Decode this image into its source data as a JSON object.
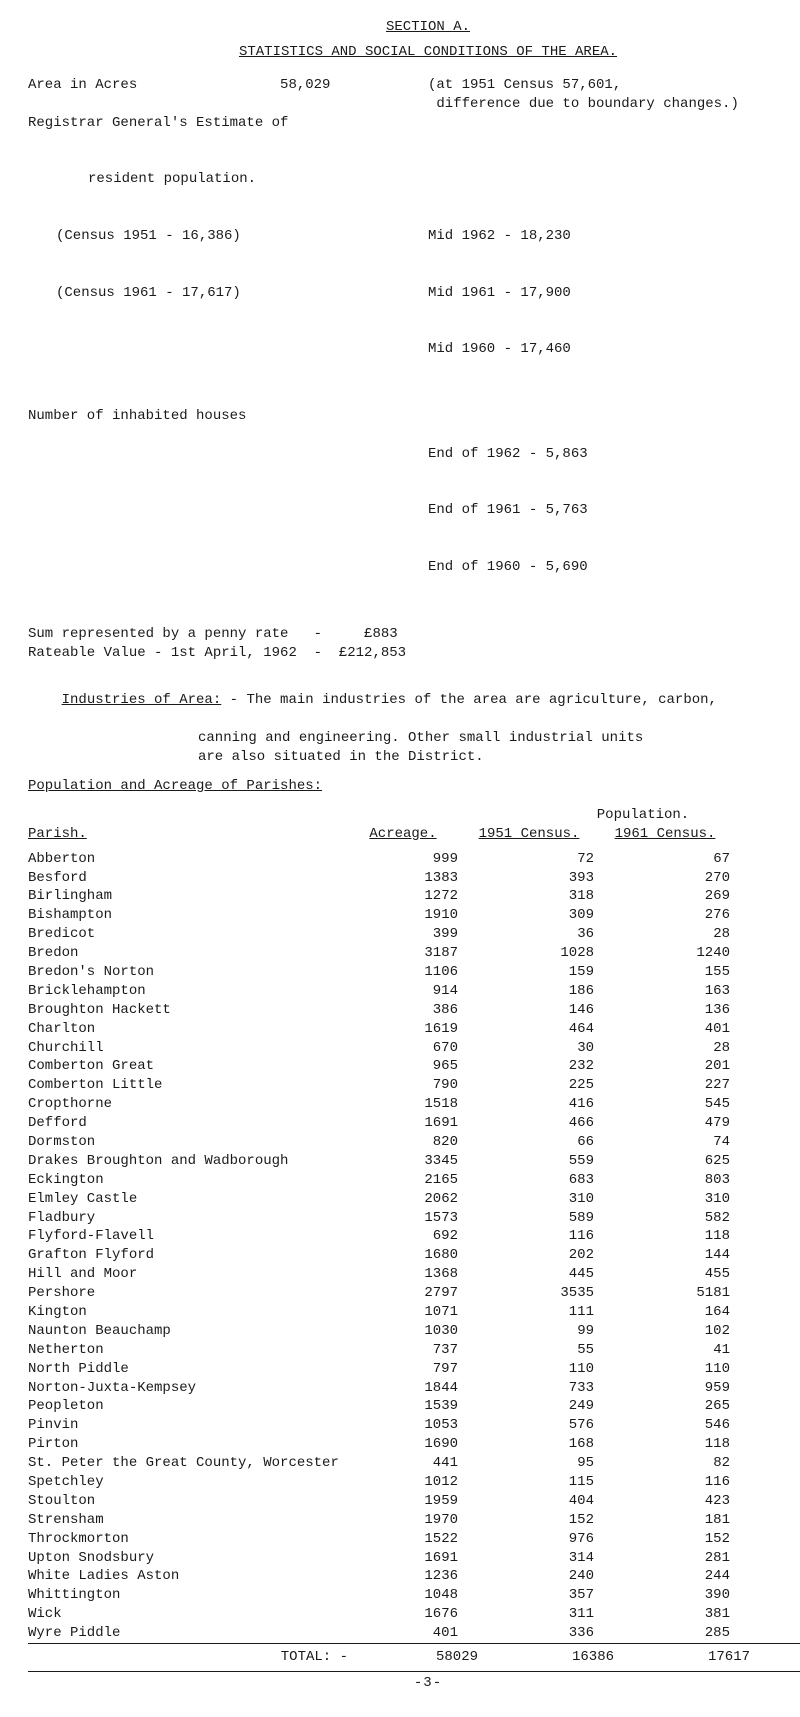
{
  "section_label": "SECTION A.",
  "title": "STATISTICS AND SOCIAL CONDITIONS OF THE AREA.",
  "area_line_left": "Area in Acres                 58,029",
  "area_line_right_a": "(at 1951 Census 57,601,",
  "area_line_right_b": " difference due to boundary changes.)",
  "registrar_a": "Registrar General's Estimate of",
  "registrar_b": "resident population.",
  "census_1951": "(Census 1951 - 16,386)",
  "census_1961": "(Census 1961 - 17,617)",
  "mid_1962": "Mid 1962 - 18,230",
  "mid_1961": "Mid 1961 - 17,900",
  "mid_1960": "Mid 1960 - 17,460",
  "houses_label": "Number of inhabited houses",
  "end_1962": "End of 1962 - 5,863",
  "end_1961": "End of 1961 - 5,763",
  "end_1960": "End of 1960 - 5,690",
  "penny_rate": "Sum represented by a penny rate   -     £883",
  "rateable_value": "Rateable Value - 1st April, 1962  -  £212,853",
  "industries_label": "Industries of Area:",
  "industries_a": " - The main industries of the area are agriculture, carbon,",
  "industries_b": "canning and engineering.   Other small industrial units",
  "industries_c": "are also situated in the District.",
  "pop_heading": "Population and Acreage of Parishes:",
  "population_label": "Population.",
  "col_parish": "Parish.",
  "col_acreage": "Acreage.",
  "col_c51": "1951 Census.",
  "col_c61": "1961 Census.",
  "parishes": [
    {
      "name": "Abberton",
      "acre": "999",
      "c51": "72",
      "c61": "67"
    },
    {
      "name": "Besford",
      "acre": "1383",
      "c51": "393",
      "c61": "270"
    },
    {
      "name": "Birlingham",
      "acre": "1272",
      "c51": "318",
      "c61": "269"
    },
    {
      "name": "Bishampton",
      "acre": "1910",
      "c51": "309",
      "c61": "276"
    },
    {
      "name": "Bredicot",
      "acre": "399",
      "c51": "36",
      "c61": "28"
    },
    {
      "name": "Bredon",
      "acre": "3187",
      "c51": "1028",
      "c61": "1240"
    },
    {
      "name": "Bredon's Norton",
      "acre": "1106",
      "c51": "159",
      "c61": "155"
    },
    {
      "name": "Bricklehampton",
      "acre": "914",
      "c51": "186",
      "c61": "163"
    },
    {
      "name": "Broughton Hackett",
      "acre": "386",
      "c51": "146",
      "c61": "136"
    },
    {
      "name": "Charlton",
      "acre": "1619",
      "c51": "464",
      "c61": "401"
    },
    {
      "name": "Churchill",
      "acre": "670",
      "c51": "30",
      "c61": "28"
    },
    {
      "name": "Comberton Great",
      "acre": "965",
      "c51": "232",
      "c61": "201"
    },
    {
      "name": "Comberton Little",
      "acre": "790",
      "c51": "225",
      "c61": "227"
    },
    {
      "name": "Cropthorne",
      "acre": "1518",
      "c51": "416",
      "c61": "545"
    },
    {
      "name": "Defford",
      "acre": "1691",
      "c51": "466",
      "c61": "479"
    },
    {
      "name": "Dormston",
      "acre": "820",
      "c51": "66",
      "c61": "74"
    },
    {
      "name": "Drakes Broughton and Wadborough",
      "acre": "3345",
      "c51": "559",
      "c61": "625"
    },
    {
      "name": "Eckington",
      "acre": "2165",
      "c51": "683",
      "c61": "803"
    },
    {
      "name": "Elmley Castle",
      "acre": "2062",
      "c51": "310",
      "c61": "310"
    },
    {
      "name": "Fladbury",
      "acre": "1573",
      "c51": "589",
      "c61": "582"
    },
    {
      "name": "Flyford-Flavell",
      "acre": "692",
      "c51": "116",
      "c61": "118"
    },
    {
      "name": "Grafton Flyford",
      "acre": "1680",
      "c51": "202",
      "c61": "144"
    },
    {
      "name": "Hill and Moor",
      "acre": "1368",
      "c51": "445",
      "c61": "455"
    },
    {
      "name": "Pershore",
      "acre": "2797",
      "c51": "3535",
      "c61": "5181"
    },
    {
      "name": "Kington",
      "acre": "1071",
      "c51": "111",
      "c61": "164"
    },
    {
      "name": "Naunton Beauchamp",
      "acre": "1030",
      "c51": "99",
      "c61": "102"
    },
    {
      "name": "Netherton",
      "acre": "737",
      "c51": "55",
      "c61": "41"
    },
    {
      "name": "North Piddle",
      "acre": "797",
      "c51": "110",
      "c61": "110"
    },
    {
      "name": "Norton-Juxta-Kempsey",
      "acre": "1844",
      "c51": "733",
      "c61": "959"
    },
    {
      "name": "Peopleton",
      "acre": "1539",
      "c51": "249",
      "c61": "265"
    },
    {
      "name": "Pinvin",
      "acre": "1053",
      "c51": "576",
      "c61": "546"
    },
    {
      "name": "Pirton",
      "acre": "1690",
      "c51": "168",
      "c61": "118"
    },
    {
      "name": "St. Peter the Great County, Worcester",
      "acre": "441",
      "c51": "95",
      "c61": "82"
    },
    {
      "name": "Spetchley",
      "acre": "1012",
      "c51": "115",
      "c61": "116"
    },
    {
      "name": "Stoulton",
      "acre": "1959",
      "c51": "404",
      "c61": "423"
    },
    {
      "name": "Strensham",
      "acre": "1970",
      "c51": "152",
      "c61": "181"
    },
    {
      "name": "Throckmorton",
      "acre": "1522",
      "c51": "976",
      "c61": "152"
    },
    {
      "name": "Upton Snodsbury",
      "acre": "1691",
      "c51": "314",
      "c61": "281"
    },
    {
      "name": "White Ladies Aston",
      "acre": "1236",
      "c51": "240",
      "c61": "244"
    },
    {
      "name": "Whittington",
      "acre": "1048",
      "c51": "357",
      "c61": "390"
    },
    {
      "name": "Wick",
      "acre": "1676",
      "c51": "311",
      "c61": "381"
    },
    {
      "name": "Wyre Piddle",
      "acre": "401",
      "c51": "336",
      "c61": "285"
    }
  ],
  "total_label": "TOTAL:  -",
  "total_acre": "58029",
  "total_c51": "16386",
  "total_c61": "17617",
  "page_footer": "-3-"
}
